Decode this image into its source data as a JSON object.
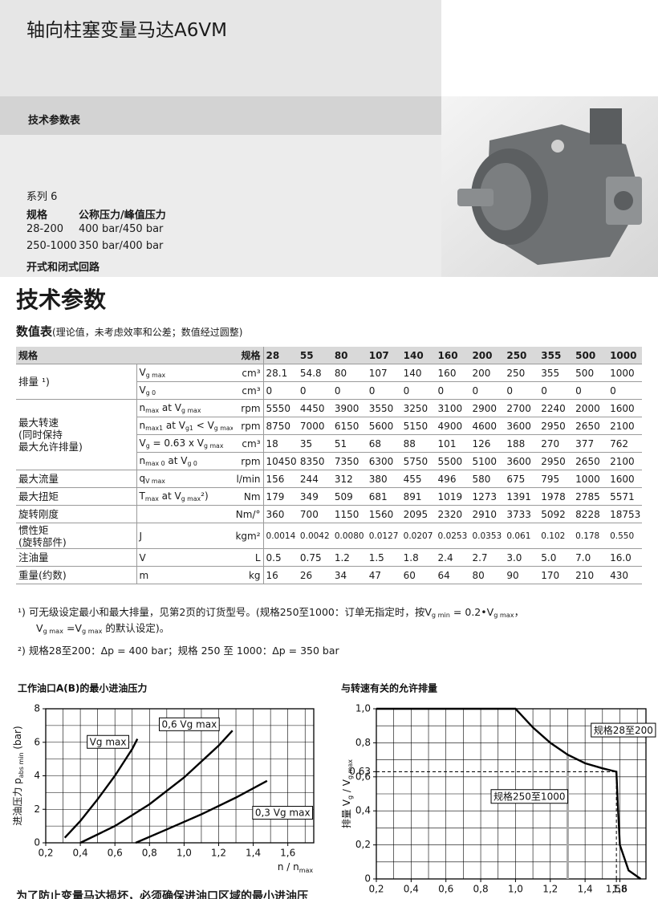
{
  "header": {
    "title": "轴向柱塞变量马达A6VM",
    "subtitle": "技术参数表"
  },
  "intro": {
    "series": "系列 6",
    "columns": [
      "规格",
      "公称压力/峰值压力"
    ],
    "rows": [
      [
        "28-200",
        "400 bar/450 bar"
      ],
      [
        "250-1000",
        "350 bar/400 bar"
      ]
    ],
    "circuit": "开式和闭式回路"
  },
  "section_title": "技术参数",
  "caption": {
    "title": "数值表",
    "note": "(理论值，未考虑效率和公差；数值经过圆整)"
  },
  "table": {
    "header": {
      "label": "规格",
      "unit": "规格",
      "sizes": [
        28,
        55,
        80,
        107,
        140,
        160,
        200,
        250,
        355,
        500,
        1000
      ]
    },
    "groups": [
      {
        "label": [
          "排量 ¹)"
        ],
        "rows": [
          {
            "symbol": [
              "V",
              "g max"
            ],
            "unit": "cm³",
            "values": [
              28.1,
              54.8,
              80,
              107,
              140,
              160,
              200,
              250,
              355,
              500,
              1000
            ]
          },
          {
            "symbol": [
              "V",
              "g 0"
            ],
            "unit": "cm³",
            "values": [
              0,
              0,
              0,
              0,
              0,
              0,
              0,
              0,
              0,
              0,
              0
            ]
          }
        ]
      },
      {
        "label": [
          "最大转速",
          "(同时保持",
          "最大允许排量)"
        ],
        "rows": [
          {
            "symbol": [
              "n",
              "max",
              " at V",
              "g max"
            ],
            "unit": "rpm",
            "values": [
              5550,
              4450,
              3900,
              3550,
              3250,
              3100,
              2900,
              2700,
              2240,
              2000,
              1600
            ]
          },
          {
            "symbol": [
              "n",
              "max1",
              " at V",
              "g1",
              " < V",
              "g max"
            ],
            "unit": "rpm",
            "values": [
              8750,
              7000,
              6150,
              5600,
              5150,
              4900,
              4600,
              3600,
              2950,
              2650,
              2100
            ]
          },
          {
            "symbol": [
              "V",
              "g",
              " = 0.63 x V",
              "g max"
            ],
            "unit": "cm³",
            "values": [
              18,
              35,
              51,
              68,
              88,
              101,
              126,
              188,
              270,
              377,
              762
            ]
          },
          {
            "symbol": [
              "n",
              "max 0",
              " at V",
              "g 0"
            ],
            "unit": "rpm",
            "values": [
              10450,
              8350,
              7350,
              6300,
              5750,
              5500,
              5100,
              3600,
              2950,
              2650,
              2100
            ]
          }
        ]
      },
      {
        "label": [
          "最大流量"
        ],
        "rows": [
          {
            "symbol": [
              "q",
              "V max"
            ],
            "unit": "l/min",
            "values": [
              156,
              244,
              312,
              380,
              455,
              496,
              580,
              675,
              795,
              1000,
              1600
            ]
          }
        ]
      },
      {
        "label": [
          "最大扭矩"
        ],
        "rows": [
          {
            "symbol": [
              "T",
              "max",
              " at V",
              "g max",
              "²)"
            ],
            "unit": "Nm",
            "values": [
              179,
              349,
              509,
              681,
              891,
              1019,
              1273,
              1391,
              1978,
              2785,
              5571
            ]
          }
        ]
      },
      {
        "label": [
          "旋转刚度"
        ],
        "rows": [
          {
            "unit": "Nm/°",
            "values": [
              360,
              700,
              1150,
              1560,
              2095,
              2320,
              2910,
              3733,
              5092,
              8228,
              18753
            ]
          }
        ]
      },
      {
        "label": [
          "惯性矩",
          "(旋转部件)"
        ],
        "rows": [
          {
            "symbol": [
              "J"
            ],
            "unit": "kgm²",
            "values": [
              "0.0014",
              "0.0042",
              "0.0080",
              "0.0127",
              "0.0207",
              "0.0253",
              "0.0353",
              "0.061",
              "0.102",
              "0.178",
              "0.550"
            ]
          }
        ]
      },
      {
        "label": [
          "注油量"
        ],
        "rows": [
          {
            "symbol": [
              "V"
            ],
            "unit": "L",
            "values": [
              "0.5",
              "0.75",
              "1.2",
              "1.5",
              "1.8",
              "2.4",
              "2.7",
              "3.0",
              "5.0",
              "7.0",
              "16.0"
            ]
          }
        ]
      },
      {
        "label": [
          "重量(约数)"
        ],
        "rows": [
          {
            "symbol": [
              "m"
            ],
            "unit": "kg",
            "values": [
              16,
              26,
              34,
              47,
              60,
              64,
              80,
              90,
              170,
              210,
              430
            ]
          }
        ]
      }
    ]
  },
  "footnotes": [
    [
      "¹)  可无级设定最小和最大排量，见第2页的订货型号。(规格250至1000：订单无指定时，按V",
      "g min",
      " = 0.2•V",
      "g max",
      "，"
    ],
    [
      "V",
      "g max",
      " =V",
      "g max",
      " 的默认设定)。"
    ],
    [
      "²)  规格28至200：Δp = 400 bar；规格 250 至 1000：Δp = 350 bar"
    ]
  ],
  "chart_data": [
    {
      "type": "line",
      "title": "工作油口A(B)的最小进油压力",
      "ylabel": [
        "进油压力 p",
        "abs min",
        " (bar)"
      ],
      "xlabel": [
        "n / n",
        "max"
      ],
      "xlim": [
        0.2,
        1.75
      ],
      "ylim": [
        0,
        8
      ],
      "xticks": [
        {
          "value": 0.2,
          "label": "0,2"
        },
        {
          "value": 0.4,
          "label": "0,4"
        },
        {
          "value": 0.6,
          "label": "0,6"
        },
        {
          "value": 0.8,
          "label": "0,8"
        },
        {
          "value": 1.0,
          "label": "1,0"
        },
        {
          "value": 1.2,
          "label": "1,2"
        },
        {
          "value": 1.4,
          "label": "1,4"
        },
        {
          "value": 1.6,
          "label": "1,6"
        }
      ],
      "yticks": [
        0,
        2,
        4,
        6,
        8
      ],
      "grid": {
        "x_step": 0.1,
        "y_step": 1
      },
      "series": [
        {
          "name": "Vg max",
          "color": "#000000",
          "x": [
            0.31,
            0.4,
            0.5,
            0.6,
            0.7,
            0.73
          ],
          "values": [
            0.3,
            1.3,
            2.6,
            4.0,
            5.6,
            6.2
          ]
        },
        {
          "name": "0,6 Vg max",
          "color": "#000000",
          "x": [
            0.4,
            0.6,
            0.8,
            1.0,
            1.2,
            1.28
          ],
          "values": [
            0.0,
            1.0,
            2.3,
            3.9,
            5.8,
            6.7
          ]
        },
        {
          "name": "0,3 Vg max",
          "color": "#000000",
          "x": [
            0.72,
            0.9,
            1.1,
            1.3,
            1.48
          ],
          "values": [
            0.0,
            0.8,
            1.7,
            2.7,
            3.7
          ]
        }
      ]
    },
    {
      "type": "line",
      "title": "与转速有关的允许排量",
      "ylabel": [
        "排量 V",
        "g",
        " / V",
        "g max"
      ],
      "xlim": [
        0.2,
        1.75
      ],
      "ylim": [
        0,
        1.0
      ],
      "xticks": [
        {
          "value": 0.2,
          "label": "0,2"
        },
        {
          "value": 0.4,
          "label": "0,4"
        },
        {
          "value": 0.6,
          "label": "0,6"
        },
        {
          "value": 0.8,
          "label": "0,8"
        },
        {
          "value": 1.0,
          "label": "1,0"
        },
        {
          "value": 1.2,
          "label": "1,2"
        },
        {
          "value": 1.4,
          "label": "1,4"
        },
        {
          "value": 1.58,
          "label": "1,58"
        },
        {
          "value": 1.6,
          "label": "1,6"
        }
      ],
      "yticks": [
        0,
        {
          "value": 0.2,
          "label": "0,2"
        },
        {
          "value": 0.4,
          "label": "0,4"
        },
        {
          "value": 0.6,
          "label": "0,6"
        },
        {
          "value": 0.63,
          "label": "0,63"
        },
        {
          "value": 0.8,
          "label": "0,8"
        },
        {
          "value": 1.0,
          "label": "1,0"
        }
      ],
      "grid": {
        "x_step": 0.1,
        "y_step": 0.1
      },
      "series": [
        {
          "color": "#000000",
          "x": [
            0.2,
            1.0,
            1.1,
            1.2,
            1.3,
            1.4,
            1.5,
            1.58,
            1.59,
            1.6,
            1.65,
            1.72
          ],
          "values": [
            1.0,
            1.0,
            0.89,
            0.8,
            0.73,
            0.68,
            0.65,
            0.63,
            0.4,
            0.2,
            0.05,
            0.0
          ]
        }
      ],
      "limit_line_x": 1.3,
      "annotations": [
        "规格28至200",
        "规格250至1000"
      ]
    }
  ],
  "footer_text": "为了防止变量马达损坏，必须确保进油口区域的最小进油压"
}
